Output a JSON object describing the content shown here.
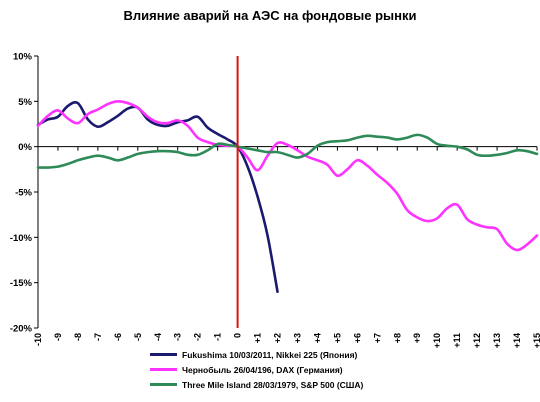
{
  "chart_data": {
    "type": "line",
    "title": "Влияние аварий на АЭС на фондовые рынки",
    "xlabel": "",
    "ylabel": "",
    "x_ticks": [
      "-10",
      "-9",
      "-8",
      "-7",
      "-6",
      "-5",
      "-4",
      "-3",
      "-2",
      "-1",
      "0",
      "+1",
      "+2",
      "+3",
      "+4",
      "+5",
      "+6",
      "+7",
      "+8",
      "+9",
      "+10",
      "+11",
      "+12",
      "+13",
      "+14",
      "+15"
    ],
    "y_ticks": [
      "10%",
      "5%",
      "0%",
      "-5%",
      "-10%",
      "-15%",
      "-20%"
    ],
    "xlim": [
      -10,
      15
    ],
    "ylim": [
      -20,
      10
    ],
    "grid": false,
    "event_line": {
      "x": 0,
      "color": "#dd1111"
    },
    "legend_position": "bottom",
    "series": [
      {
        "name": "Fukushima 10/03/2011, Nikkei 225 (Япония)",
        "color": "#1a1a6e",
        "x": [
          -10,
          -9.5,
          -9,
          -8.5,
          -8,
          -7.5,
          -7,
          -6.5,
          -6,
          -5.5,
          -5,
          -4.5,
          -4,
          -3.5,
          -3,
          -2.5,
          -2,
          -1.5,
          -1,
          -0.5,
          0,
          0.5,
          1,
          1.5,
          2
        ],
        "y": [
          2.4,
          3.0,
          3.3,
          4.5,
          4.8,
          3.0,
          2.2,
          2.7,
          3.4,
          4.2,
          4.3,
          3.0,
          2.4,
          2.3,
          2.7,
          2.9,
          3.3,
          2.1,
          1.4,
          0.8,
          0,
          -2.2,
          -5.5,
          -9.8,
          -16.0
        ]
      },
      {
        "name": "Чернобыль 26/04/196, DAX (Германия)",
        "color": "#ff33ff",
        "x": [
          -10,
          -9.5,
          -9,
          -8.5,
          -8,
          -7.5,
          -7,
          -6.5,
          -6,
          -5.5,
          -5,
          -4.5,
          -4,
          -3.5,
          -3,
          -2.5,
          -2,
          -1.5,
          -1,
          -0.5,
          0,
          0.5,
          1,
          1.5,
          2,
          2.5,
          3,
          3.5,
          4,
          4.5,
          5,
          5.5,
          6,
          6.5,
          7,
          7.5,
          8,
          8.5,
          9,
          9.5,
          10,
          10.5,
          11,
          11.5,
          12,
          12.5,
          13,
          13.5,
          14,
          14.5,
          15
        ],
        "y": [
          2.3,
          3.4,
          4.0,
          3.1,
          2.6,
          3.6,
          4.1,
          4.7,
          5.0,
          4.8,
          4.3,
          3.3,
          2.7,
          2.6,
          2.9,
          2.3,
          1.0,
          0.5,
          0.2,
          0.1,
          0,
          -1.2,
          -2.6,
          -1.0,
          0.4,
          0.2,
          -0.4,
          -1.1,
          -1.5,
          -2.0,
          -3.2,
          -2.5,
          -1.5,
          -2.1,
          -3.1,
          -4.0,
          -5.2,
          -7.0,
          -7.8,
          -8.2,
          -7.9,
          -6.8,
          -6.4,
          -8.0,
          -8.6,
          -8.9,
          -9.1,
          -10.7,
          -11.4,
          -10.8,
          -9.8
        ]
      },
      {
        "name": "Three Mile Island 28/03/1979, S&P 500 (США)",
        "color": "#2e8b57",
        "x": [
          -10,
          -9.5,
          -9,
          -8.5,
          -8,
          -7.5,
          -7,
          -6.5,
          -6,
          -5.5,
          -5,
          -4.5,
          -4,
          -3.5,
          -3,
          -2.5,
          -2,
          -1.5,
          -1,
          -0.5,
          0,
          0.5,
          1,
          1.5,
          2,
          2.5,
          3,
          3.5,
          4,
          4.5,
          5,
          5.5,
          6,
          6.5,
          7,
          7.5,
          8,
          8.5,
          9,
          9.5,
          10,
          10.5,
          11,
          11.5,
          12,
          12.5,
          13,
          13.5,
          14,
          14.5,
          15
        ],
        "y": [
          -2.3,
          -2.3,
          -2.2,
          -1.9,
          -1.5,
          -1.2,
          -1.0,
          -1.2,
          -1.5,
          -1.2,
          -0.8,
          -0.6,
          -0.5,
          -0.5,
          -0.6,
          -0.9,
          -0.9,
          -0.4,
          0.3,
          0.2,
          0,
          -0.2,
          -0.4,
          -0.6,
          -0.6,
          -0.9,
          -1.2,
          -0.8,
          0.1,
          0.5,
          0.6,
          0.7,
          1.0,
          1.2,
          1.1,
          1.0,
          0.8,
          1.0,
          1.3,
          1.0,
          0.3,
          0.1,
          0.0,
          -0.3,
          -0.9,
          -1.0,
          -0.9,
          -0.7,
          -0.4,
          -0.5,
          -0.8
        ]
      }
    ]
  }
}
